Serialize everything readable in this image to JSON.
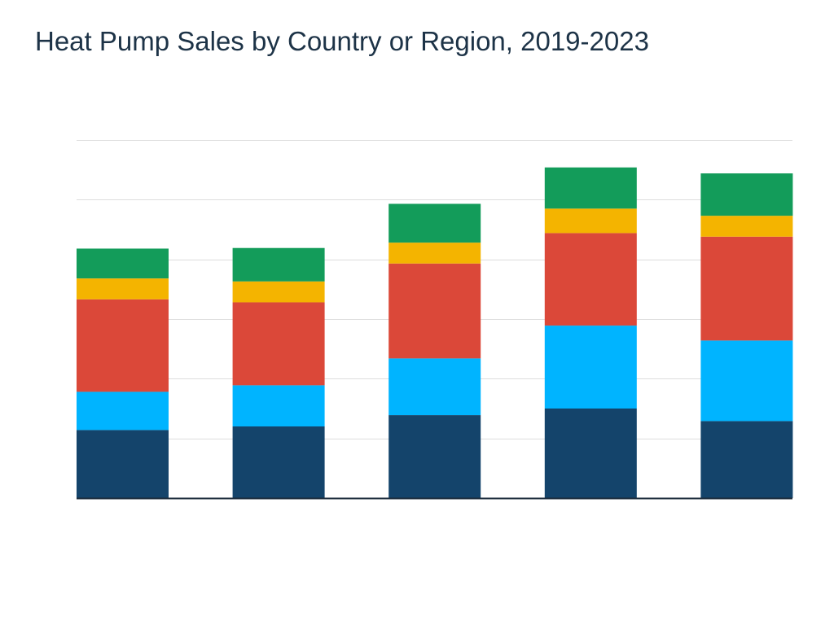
{
  "chart_data": {
    "type": "bar",
    "stacked": true,
    "title": "Heat Pump Sales by Country or Region, 2019-2023",
    "xlabel": "",
    "ylabel": "",
    "ylim": [
      0,
      6
    ],
    "grid": true,
    "categories": [
      "",
      "",
      "",
      "",
      ""
    ],
    "series": [
      {
        "color": "#14446b",
        "values": [
          1.14,
          1.2,
          1.39,
          1.5,
          1.29
        ]
      },
      {
        "color": "#00b4ff",
        "values": [
          0.64,
          0.69,
          0.95,
          1.39,
          1.35
        ]
      },
      {
        "color": "#db4839",
        "values": [
          1.55,
          1.39,
          1.59,
          1.55,
          1.74
        ]
      },
      {
        "color": "#f4b400",
        "values": [
          0.35,
          0.35,
          0.35,
          0.41,
          0.35
        ]
      },
      {
        "color": "#139c5a",
        "values": [
          0.5,
          0.56,
          0.65,
          0.69,
          0.71
        ]
      }
    ]
  }
}
